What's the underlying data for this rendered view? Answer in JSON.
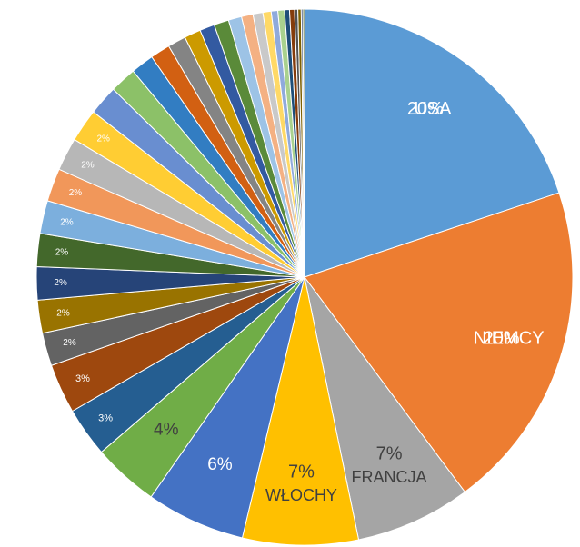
{
  "chart_data": {
    "type": "pie",
    "categories": [
      "USA",
      "NIEMCY",
      "FRANCJA",
      "WŁOCHY",
      null,
      null,
      null,
      null,
      null,
      null,
      null,
      null,
      null,
      null,
      null,
      null,
      null,
      null,
      null,
      null,
      null,
      null,
      null,
      null,
      null,
      null,
      null,
      null,
      null,
      null,
      null,
      null,
      null,
      null,
      null,
      null
    ],
    "values": [
      20,
      20,
      7,
      7,
      6,
      4,
      3,
      3,
      2,
      2,
      2,
      2,
      2,
      2,
      2,
      2,
      1.8,
      1.6,
      1.4,
      1.2,
      1.1,
      1,
      0.9,
      0.9,
      0.8,
      0.7,
      0.6,
      0.5,
      0.4,
      0.4,
      0.3,
      0.3,
      0.2,
      0.2,
      0.1,
      0.1
    ],
    "value_labels": [
      "20%",
      "20%",
      "7%",
      "7%",
      "6%",
      "4%",
      "3%",
      "3%",
      "2%",
      "2%",
      "2%",
      "2%",
      "2%",
      "2%",
      "2%",
      "2%",
      null,
      null,
      null,
      null,
      null,
      null,
      null,
      null,
      null,
      null,
      null,
      null,
      null,
      null,
      null,
      null,
      null,
      null,
      null,
      null
    ],
    "colors": [
      "#5b9bd5",
      "#ed7d31",
      "#a5a5a5",
      "#ffc000",
      "#4472c4",
      "#70ad47",
      "#255e91",
      "#9e480e",
      "#636363",
      "#997300",
      "#264478",
      "#43682b",
      "#7cafdd",
      "#f1975a",
      "#b7b7b7",
      "#ffcd33",
      "#698ed0",
      "#8cc168",
      "#327dc2",
      "#d26012",
      "#848484",
      "#cc9a00",
      "#335aa1",
      "#5a8a39",
      "#9dc3e6",
      "#f4b183",
      "#c9c9c9",
      "#ffd966",
      "#8faadc",
      "#a9d18e",
      "#1e4e79",
      "#843c0c",
      "#525252",
      "#7f6000",
      "#203864",
      "#375623"
    ]
  }
}
